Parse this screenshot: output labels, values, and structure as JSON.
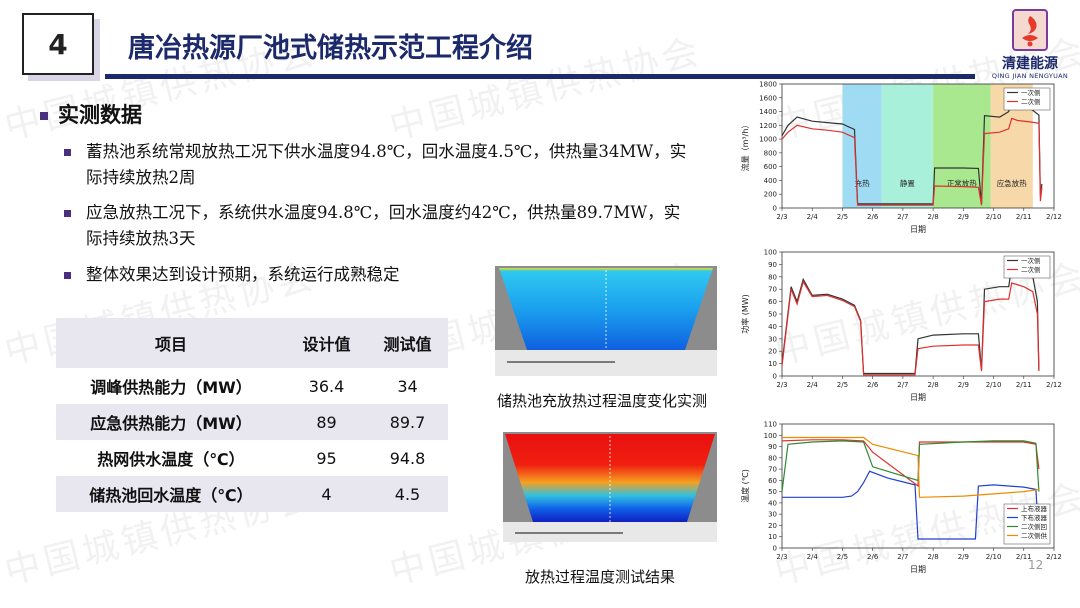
{
  "slide": {
    "number": "4",
    "title": "唐冶热源厂池式储热示范工程介绍",
    "page": "12"
  },
  "logo": {
    "name": "清建能源",
    "sub": "QING JIAN NENGYUAN"
  },
  "watermark": "中国城镇供热协会",
  "section": {
    "heading": "实测数据",
    "bullets": [
      {
        "line1": "蓄热池系统常规放热工况下供水温度94.8℃，回水温度4.5℃，供热量34MW，实",
        "line2": "际持续放热2周"
      },
      {
        "line1": "应急放热工况下，系统供水温度94.8℃，回水温度约42℃，供热量89.7MW，实",
        "line2": "际持续放热3天"
      },
      {
        "line1": "整体效果达到设计预期，系统运行成熟稳定",
        "line2": ""
      }
    ]
  },
  "table": {
    "headers": [
      "项目",
      "设计值",
      "测试值"
    ],
    "rows": [
      {
        "item": "调峰供热能力（MW）",
        "design": "36.4",
        "test": "34"
      },
      {
        "item": "应急供热能力（MW）",
        "design": "89",
        "test": "89.7"
      },
      {
        "item": "热网供水温度（℃）",
        "design": "95",
        "test": "94.8"
      },
      {
        "item": "储热池回水温度（℃）",
        "design": "4",
        "test": "4.5"
      }
    ]
  },
  "images": {
    "charge_caption": "储热池充放热过程温度变化实测",
    "discharge_caption": "放热过程温度测试结果"
  },
  "chart_data": [
    {
      "type": "line",
      "xlabel": "日期",
      "ylabel": "流量（m³/h）",
      "x_ticks": [
        "2/3",
        "2/4",
        "2/5",
        "2/6",
        "2/7",
        "2/8",
        "2/9",
        "2/10",
        "2/11",
        "2/12"
      ],
      "ylim": [
        0,
        1800
      ],
      "y_ticks": [
        0,
        200,
        400,
        600,
        800,
        1000,
        1200,
        1400,
        1600,
        1800
      ],
      "phases": [
        {
          "label": "充热",
          "x": [
            2.0,
            3.3
          ],
          "color": "#9fdcf3"
        },
        {
          "label": "静置",
          "x": [
            3.3,
            5.0
          ],
          "color": "#a8f0d9"
        },
        {
          "label": "正常放热",
          "x": [
            5.0,
            6.9
          ],
          "color": "#a9e88f"
        },
        {
          "label": "应急放热",
          "x": [
            6.9,
            8.3
          ],
          "color": "#f7d8a8"
        }
      ],
      "series": [
        {
          "name": "一次侧",
          "color": "#333333",
          "points": [
            [
              0.0,
              1050
            ],
            [
              0.2,
              1200
            ],
            [
              0.5,
              1320
            ],
            [
              1.0,
              1260
            ],
            [
              1.5,
              1240
            ],
            [
              2.0,
              1220
            ],
            [
              2.4,
              1140
            ],
            [
              2.5,
              60
            ],
            [
              5.0,
              60
            ],
            [
              5.05,
              580
            ],
            [
              6.0,
              580
            ],
            [
              6.5,
              575
            ],
            [
              6.6,
              60
            ],
            [
              6.7,
              1340
            ],
            [
              7.2,
              1320
            ],
            [
              7.5,
              1400
            ],
            [
              7.6,
              1600
            ],
            [
              7.8,
              1560
            ],
            [
              8.2,
              1450
            ],
            [
              8.5,
              1350
            ],
            [
              8.55,
              180
            ],
            [
              8.6,
              350
            ]
          ]
        },
        {
          "name": "二次侧",
          "color": "#e03030",
          "points": [
            [
              0.0,
              1000
            ],
            [
              0.2,
              1100
            ],
            [
              0.5,
              1200
            ],
            [
              1.0,
              1150
            ],
            [
              1.5,
              1130
            ],
            [
              2.0,
              1100
            ],
            [
              2.4,
              1020
            ],
            [
              2.5,
              40
            ],
            [
              5.0,
              40
            ],
            [
              5.05,
              320
            ],
            [
              6.0,
              310
            ],
            [
              6.5,
              300
            ],
            [
              6.6,
              40
            ],
            [
              6.7,
              1080
            ],
            [
              7.2,
              1100
            ],
            [
              7.5,
              1150
            ],
            [
              7.6,
              1300
            ],
            [
              7.8,
              1270
            ],
            [
              8.2,
              1250
            ],
            [
              8.5,
              1230
            ],
            [
              8.55,
              100
            ],
            [
              8.6,
              300
            ]
          ]
        }
      ]
    },
    {
      "type": "line",
      "xlabel": "日期",
      "ylabel": "功率 (MW)",
      "x_ticks": [
        "2/3",
        "2/4",
        "2/5",
        "2/6",
        "2/7",
        "2/8",
        "2/9",
        "2/10",
        "2/11",
        "2/12"
      ],
      "ylim": [
        0,
        100
      ],
      "y_ticks": [
        0,
        10,
        20,
        30,
        40,
        50,
        60,
        70,
        80,
        90,
        100
      ],
      "series": [
        {
          "name": "一次侧",
          "color": "#333333",
          "points": [
            [
              0.0,
              10
            ],
            [
              0.3,
              72
            ],
            [
              0.5,
              60
            ],
            [
              0.7,
              78
            ],
            [
              1.0,
              65
            ],
            [
              1.5,
              66
            ],
            [
              2.0,
              62
            ],
            [
              2.4,
              57
            ],
            [
              2.6,
              45
            ],
            [
              2.7,
              2
            ],
            [
              4.4,
              2
            ],
            [
              4.5,
              30
            ],
            [
              5.0,
              33
            ],
            [
              6.0,
              34
            ],
            [
              6.5,
              34
            ],
            [
              6.6,
              5
            ],
            [
              6.7,
              70
            ],
            [
              7.2,
              72
            ],
            [
              7.5,
              72
            ],
            [
              7.6,
              88
            ],
            [
              8.0,
              85
            ],
            [
              8.3,
              80
            ],
            [
              8.45,
              60
            ],
            [
              8.5,
              5
            ]
          ]
        },
        {
          "name": "二次侧",
          "color": "#e03030",
          "points": [
            [
              0.0,
              8
            ],
            [
              0.3,
              70
            ],
            [
              0.5,
              58
            ],
            [
              0.7,
              76
            ],
            [
              1.0,
              64
            ],
            [
              1.5,
              65
            ],
            [
              2.0,
              61
            ],
            [
              2.4,
              56
            ],
            [
              2.6,
              44
            ],
            [
              2.7,
              1
            ],
            [
              4.4,
              1
            ],
            [
              4.5,
              22
            ],
            [
              5.0,
              24
            ],
            [
              6.0,
              25
            ],
            [
              6.5,
              25
            ],
            [
              6.6,
              4
            ],
            [
              6.7,
              60
            ],
            [
              7.2,
              62
            ],
            [
              7.5,
              62
            ],
            [
              7.6,
              75
            ],
            [
              8.0,
              72
            ],
            [
              8.3,
              68
            ],
            [
              8.45,
              50
            ],
            [
              8.5,
              4
            ]
          ]
        }
      ]
    },
    {
      "type": "line",
      "xlabel": "日期",
      "ylabel": "温度 (℃)",
      "x_ticks": [
        "2/3",
        "2/4",
        "2/5",
        "2/6",
        "2/7",
        "2/8",
        "2/9",
        "2/10",
        "2/11",
        "2/12"
      ],
      "ylim": [
        0,
        110
      ],
      "y_ticks": [
        0,
        10,
        20,
        30,
        40,
        50,
        60,
        70,
        80,
        90,
        100,
        110
      ],
      "series": [
        {
          "name": "上布液器",
          "color": "#e03030",
          "points": [
            [
              0.0,
              95
            ],
            [
              1.0,
              96
            ],
            [
              2.0,
              96
            ],
            [
              2.7,
              95
            ],
            [
              3.0,
              85
            ],
            [
              4.5,
              55
            ],
            [
              4.55,
              94
            ],
            [
              6.0,
              94
            ],
            [
              7.0,
              94
            ],
            [
              8.0,
              94
            ],
            [
              8.4,
              92
            ],
            [
              8.5,
              70
            ]
          ]
        },
        {
          "name": "下布液器",
          "color": "#2040d0",
          "points": [
            [
              0.0,
              45
            ],
            [
              1.0,
              45
            ],
            [
              2.0,
              45
            ],
            [
              2.3,
              46
            ],
            [
              2.5,
              50
            ],
            [
              2.7,
              58
            ],
            [
              2.9,
              68
            ],
            [
              3.5,
              62
            ],
            [
              4.4,
              56
            ],
            [
              4.5,
              8
            ],
            [
              5.5,
              8
            ],
            [
              6.4,
              8
            ],
            [
              6.5,
              55
            ],
            [
              7.0,
              56
            ],
            [
              8.0,
              54
            ],
            [
              8.4,
              52
            ],
            [
              8.5,
              8
            ]
          ]
        },
        {
          "name": "二次侧回",
          "color": "#2e8b2e",
          "points": [
            [
              0.0,
              50
            ],
            [
              0.2,
              92
            ],
            [
              1.0,
              94
            ],
            [
              2.0,
              95
            ],
            [
              2.7,
              94
            ],
            [
              3.0,
              72
            ],
            [
              4.5,
              60
            ],
            [
              4.55,
              92
            ],
            [
              6.0,
              94
            ],
            [
              7.0,
              95
            ],
            [
              8.0,
              95
            ],
            [
              8.4,
              93
            ],
            [
              8.5,
              50
            ]
          ]
        },
        {
          "name": "二次侧供",
          "color": "#f08a00",
          "points": [
            [
              0.0,
              98
            ],
            [
              1.0,
              98
            ],
            [
              2.0,
              98
            ],
            [
              2.7,
              98
            ],
            [
              3.0,
              92
            ],
            [
              4.5,
              82
            ],
            [
              4.55,
              45
            ],
            [
              6.0,
              46
            ],
            [
              7.0,
              48
            ],
            [
              8.0,
              50
            ],
            [
              8.5,
              52
            ]
          ]
        }
      ]
    }
  ]
}
